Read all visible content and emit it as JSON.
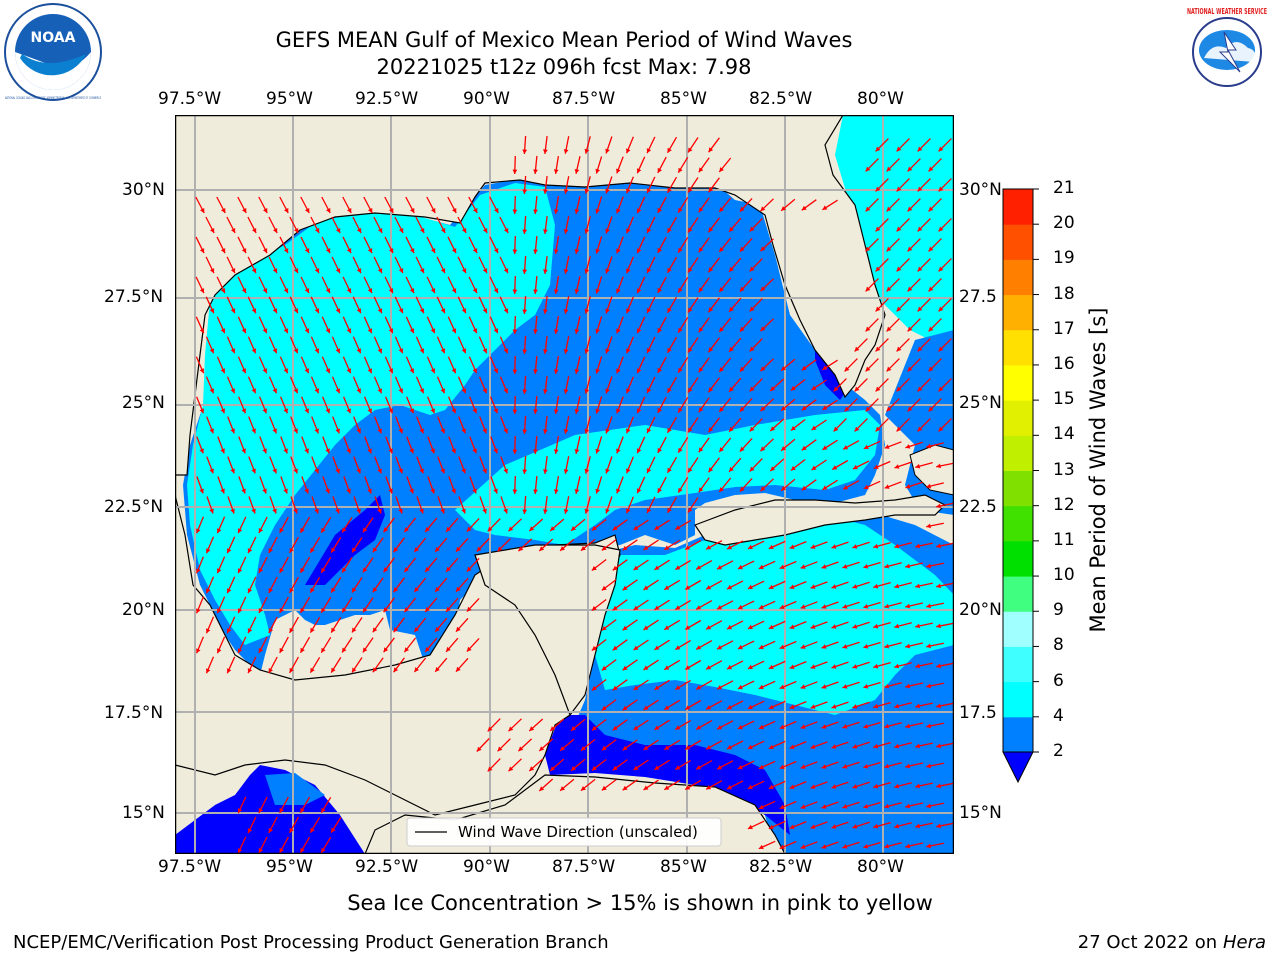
{
  "header": {
    "title_line1": "GEFS MEAN Gulf of Mexico Mean Period of Wind Waves",
    "title_line2": "20221025 t12z 096h fcst   Max: 7.98"
  },
  "logos": {
    "left": "noaa-logo",
    "left_text": "NOAA",
    "left_ring_text": "NATIONAL OCEANIC AND ATMOSPHERIC ADMINISTRATION · U.S. DEPARTMENT OF COMMERCE",
    "right": "nws-logo",
    "right_ring_text": "NATIONAL WEATHER SERVICE"
  },
  "map": {
    "lon_labels": [
      "97.5°W",
      "95°W",
      "92.5°W",
      "90°W",
      "87.5°W",
      "85°W",
      "82.5°W",
      "80°W"
    ],
    "lat_labels": [
      "30°N",
      "27.5°N",
      "25°N",
      "22.5°N",
      "20°N",
      "17.5°N",
      "15°N"
    ],
    "right_lat_labels": [
      "30°N",
      "27.5",
      "25°N",
      "22.5",
      "20°N",
      "17.5",
      "15°N"
    ],
    "legend_label": "Wind Wave Direction (unscaled)",
    "colors": {
      "land": "#efecdb",
      "band_2_4": "#0080ff",
      "band_4_6": "#00ffff",
      "band_lt_2": "#0000ff",
      "arrow": "#ff0000",
      "grid": "#b0b0b0"
    }
  },
  "colorbar": {
    "label": "Mean Period of Wind Waves [s]",
    "ticks": [
      "2",
      "4",
      "6",
      "8",
      "9",
      "10",
      "11",
      "12",
      "13",
      "14",
      "15",
      "16",
      "17",
      "18",
      "19",
      "20",
      "21"
    ],
    "colors": [
      "#0080ff",
      "#00ffff",
      "#40ffff",
      "#a0ffff",
      "#40ff80",
      "#00e000",
      "#40e000",
      "#80e000",
      "#c0f000",
      "#e0f000",
      "#ffff00",
      "#ffe000",
      "#ffb000",
      "#ff8000",
      "#ff5000",
      "#ff2000",
      "#ff0000"
    ],
    "extend_color": "#0000ff"
  },
  "footer": {
    "sea_ice_note": "Sea Ice Concentration > 15% is shown in pink to yellow",
    "credit": "NCEP/EMC/Verification Post Processing Product Generation Branch",
    "date": "27 Oct 2022 on ",
    "host": "Hera"
  }
}
